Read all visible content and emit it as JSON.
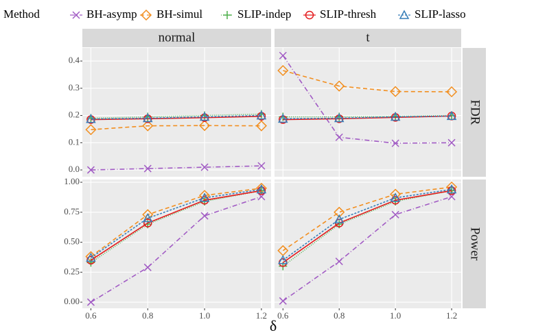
{
  "chart_data": {
    "type": "line",
    "legend_title": "Method",
    "x_label": "δ",
    "columns": [
      "normal",
      "t"
    ],
    "rows": [
      "FDR",
      "Power"
    ],
    "x": [
      0.6,
      0.8,
      1.0,
      1.2
    ],
    "xlim": [
      0.57,
      1.234
    ],
    "xticks": [
      0.6,
      0.8,
      {
        "value": 1.0,
        "label": "1.0"
      },
      1.2
    ],
    "grid": true,
    "legend_position": "top",
    "series": [
      {
        "name": "BH-asymp",
        "color": "#a15bc4",
        "marker": "x",
        "dash": "7 3 1 3"
      },
      {
        "name": "BH-simul",
        "color": "#f28e1e",
        "marker": "diamond",
        "dash": "6 4"
      },
      {
        "name": "SLIP-indep",
        "color": "#4daf4a",
        "marker": "plus",
        "dash": "1 2"
      },
      {
        "name": "SLIP-thresh",
        "color": "#e41a1c",
        "marker": "circle",
        "dash": "none"
      },
      {
        "name": "SLIP-lasso",
        "color": "#377eb8",
        "marker": "triangle",
        "dash": "3 2"
      }
    ],
    "panels": [
      {
        "column": 0,
        "row": 0,
        "ylim": [
          -0.025,
          0.448
        ],
        "yticks": [
          {
            "value": 0,
            "label": "0.0"
          },
          0.1,
          0.2,
          0.3,
          0.4
        ],
        "series": [
          {
            "values": [
              0.0,
              0.005,
              0.01,
              0.015
            ]
          },
          {
            "values": [
              0.148,
              0.162,
              0.163,
              0.162
            ]
          },
          {
            "values": [
              0.19,
              0.195,
              0.2,
              0.205
            ]
          },
          {
            "values": [
              0.185,
              0.188,
              0.192,
              0.197
            ]
          },
          {
            "values": [
              0.187,
              0.19,
              0.195,
              0.2
            ]
          }
        ]
      },
      {
        "column": 1,
        "row": 0,
        "ylim": [
          -0.025,
          0.448
        ],
        "yticks": [
          {
            "value": 0,
            "label": "0.0"
          },
          0.1,
          0.2,
          0.3,
          0.4
        ],
        "series": [
          {
            "values": [
              0.42,
              0.12,
              0.098,
              0.1
            ]
          },
          {
            "values": [
              0.365,
              0.308,
              0.288,
              0.287
            ]
          },
          {
            "values": [
              0.195,
              0.195,
              0.197,
              0.2
            ]
          },
          {
            "values": [
              0.185,
              0.188,
              0.193,
              0.198
            ]
          },
          {
            "values": [
              0.188,
              0.19,
              0.195,
              0.198
            ]
          }
        ]
      },
      {
        "column": 0,
        "row": 1,
        "ylim": [
          -0.051,
          1.023
        ],
        "yticks": [
          {
            "value": 0,
            "label": "0.00"
          },
          0.25,
          {
            "value": 0.5,
            "label": "0.50"
          },
          0.75,
          {
            "value": 1,
            "label": "1.00"
          }
        ],
        "series": [
          {
            "values": [
              0.0,
              0.29,
              0.72,
              0.88
            ]
          },
          {
            "values": [
              0.38,
              0.73,
              0.89,
              0.95
            ]
          },
          {
            "values": [
              0.33,
              0.65,
              0.84,
              0.93
            ]
          },
          {
            "values": [
              0.35,
              0.66,
              0.85,
              0.93
            ]
          },
          {
            "values": [
              0.37,
              0.7,
              0.87,
              0.94
            ]
          }
        ]
      },
      {
        "column": 1,
        "row": 1,
        "ylim": [
          -0.051,
          1.023
        ],
        "yticks": [
          {
            "value": 0,
            "label": "0.00"
          },
          0.25,
          {
            "value": 0.5,
            "label": "0.50"
          },
          0.75,
          {
            "value": 1,
            "label": "1.00"
          }
        ],
        "series": [
          {
            "values": [
              0.01,
              0.34,
              0.73,
              0.88
            ]
          },
          {
            "values": [
              0.43,
              0.75,
              0.9,
              0.96
            ]
          },
          {
            "values": [
              0.3,
              0.65,
              0.84,
              0.93
            ]
          },
          {
            "values": [
              0.33,
              0.66,
              0.85,
              0.93
            ]
          },
          {
            "values": [
              0.35,
              0.69,
              0.87,
              0.94
            ]
          }
        ]
      }
    ]
  }
}
